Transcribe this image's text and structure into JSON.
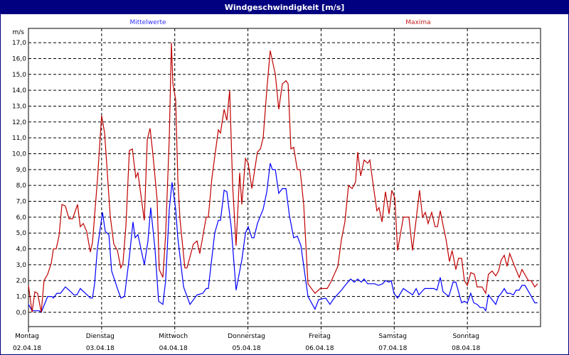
{
  "window": {
    "title": "Windgeschwindigkeit [m/s]"
  },
  "colors": {
    "titlebar": "#000080",
    "mittelwerte": "#0000ff",
    "maxima": "#c00000",
    "legend_mittel": "#3030ff",
    "legend_max": "#c02020"
  },
  "chart_data": {
    "type": "line",
    "title": "Windgeschwindigkeit [m/s]",
    "ylabel": "m/s",
    "xlabel": "",
    "ylim": [
      -0.9,
      17.9
    ],
    "xlim_hours": [
      0,
      168
    ],
    "grid": true,
    "yticks": [
      "0,0",
      "1,0",
      "2,0",
      "3,0",
      "4,0",
      "5,0",
      "6,0",
      "7,0",
      "8,0",
      "9,0",
      "10,0",
      "11,0",
      "12,0",
      "13,0",
      "14,0",
      "15,0",
      "16,0",
      "17,0"
    ],
    "days": [
      {
        "name": "Montag",
        "date": "02.04.18"
      },
      {
        "name": "Dienstag",
        "date": "03.04.18"
      },
      {
        "name": "Mittwoch",
        "date": "04.04.18"
      },
      {
        "name": "Donnerstag",
        "date": "05.04.18"
      },
      {
        "name": "Freitag",
        "date": "06.04.18"
      },
      {
        "name": "Samstag",
        "date": "07.04.18"
      },
      {
        "name": "Sonntag",
        "date": "08.04.18"
      }
    ],
    "legend": [
      "Mittelwerte",
      "Maxima"
    ],
    "series": [
      {
        "name": "Mittelwerte",
        "color": "#0000ff",
        "hours": [
          0,
          1.2,
          3.5,
          4.2,
          6.3,
          7.7,
          8.2,
          9.3,
          10.5,
          12.1,
          13.3,
          14.9,
          15.9,
          17.0,
          18.7,
          20.3,
          21.0,
          21.7,
          22.6,
          24.3,
          25.2,
          26.4,
          27.3,
          29.2,
          30.3,
          31.5,
          33.1,
          34.3,
          35.0,
          35.9,
          38.0,
          39.2,
          40.1,
          41.5,
          42.7,
          44.1,
          45.0,
          46.2,
          47.1,
          48.3,
          49.0,
          50.9,
          53.0,
          55.3,
          57.2,
          58.3,
          59.0,
          61.1,
          62.3,
          63.0,
          64.2,
          65.1,
          66.5,
          68.1,
          70.0,
          71.2,
          72.1,
          73.3,
          74.0,
          75.1,
          77.0,
          78.2,
          79.3,
          80.0,
          81.0,
          82.1,
          83.3,
          84.5,
          85.6,
          87.0,
          88.2,
          89.4,
          91.7,
          94.0,
          95.2,
          97.5,
          98.9,
          100.3,
          102.7,
          104.3,
          105.7,
          106.9,
          108.0,
          109.2,
          110.1,
          111.3,
          113.6,
          114.8,
          116.2,
          117.1,
          118.3,
          119.0,
          119.9,
          121.1,
          123.0,
          126.0,
          127.2,
          128.1,
          130.0,
          133.0,
          134.0,
          135.1,
          136.0,
          137.9,
          139.3,
          140.2,
          142.1,
          143.0,
          144.0,
          145.1,
          146.1,
          147.2,
          148.2,
          149.3,
          150.0,
          150.9,
          153.3,
          154.2,
          155.1,
          156.1,
          157.0,
          157.9,
          159.1,
          160.0,
          161.0,
          161.9,
          162.9,
          165.0,
          166.1,
          167.0
        ],
        "values": [
          0.5,
          0.1,
          0.1,
          0.0,
          1.0,
          1.0,
          0.9,
          1.2,
          1.2,
          1.6,
          1.4,
          1.1,
          1.1,
          1.5,
          1.2,
          0.9,
          0.9,
          1.8,
          4.0,
          6.3,
          5.1,
          4.9,
          2.6,
          1.5,
          0.9,
          1.0,
          3.5,
          5.7,
          4.7,
          4.9,
          3.0,
          4.5,
          6.6,
          4.0,
          0.7,
          0.5,
          2.0,
          6.5,
          8.2,
          6.5,
          4.7,
          1.6,
          0.5,
          1.1,
          1.2,
          1.5,
          1.5,
          5.0,
          5.8,
          5.8,
          7.7,
          7.6,
          5.4,
          1.4,
          3.3,
          5.0,
          5.4,
          4.7,
          4.7,
          5.6,
          6.5,
          7.6,
          9.4,
          9.0,
          9.0,
          7.5,
          7.8,
          7.8,
          6.1,
          4.7,
          4.8,
          4.2,
          1.0,
          0.2,
          0.8,
          0.9,
          0.5,
          0.9,
          1.4,
          1.8,
          2.1,
          1.9,
          2.1,
          1.9,
          2.1,
          1.8,
          1.8,
          1.7,
          1.8,
          2.0,
          1.9,
          2.0,
          1.2,
          0.9,
          1.5,
          1.1,
          1.5,
          1.1,
          1.5,
          1.5,
          1.4,
          2.2,
          1.3,
          1.0,
          1.9,
          1.9,
          0.6,
          0.7,
          0.6,
          1.2,
          0.6,
          0.5,
          0.3,
          0.3,
          0.1,
          1.1,
          0.5,
          1.0,
          1.2,
          1.5,
          1.2,
          1.2,
          1.1,
          1.4,
          1.4,
          1.7,
          1.7,
          1.0,
          0.6,
          0.6
        ]
      },
      {
        "name": "Maxima",
        "color": "#c00000",
        "hours": [
          0,
          1.2,
          2.1,
          3.0,
          4.2,
          5.1,
          6.3,
          7.5,
          8.2,
          9.1,
          10.0,
          11.0,
          12.1,
          13.3,
          14.5,
          16.1,
          17.0,
          18.0,
          19.1,
          20.3,
          21.0,
          22.6,
          23.6,
          24.0,
          25.0,
          26.8,
          28.0,
          29.2,
          30.3,
          31.0,
          32.0,
          33.1,
          34.1,
          35.2,
          35.9,
          36.9,
          38.0,
          39.0,
          39.9,
          40.8,
          42.2,
          42.9,
          44.1,
          45.0,
          46.2,
          46.9,
          47.4,
          48.3,
          49.0,
          49.7,
          51.3,
          52.0,
          54.1,
          55.3,
          56.2,
          58.3,
          59.0,
          60.2,
          62.3,
          63.0,
          64.2,
          65.1,
          66.0,
          67.0,
          68.1,
          69.3,
          70.0,
          71.2,
          72.1,
          73.3,
          75.1,
          76.1,
          77.0,
          78.2,
          79.3,
          81.0,
          82.1,
          83.3,
          84.5,
          85.2,
          86.1,
          87.0,
          88.2,
          89.1,
          90.3,
          91.7,
          94.0,
          95.7,
          98.0,
          99.2,
          101.5,
          102.7,
          103.8,
          105.0,
          106.2,
          107.3,
          108.0,
          109.0,
          110.1,
          111.3,
          112.0,
          113.2,
          114.3,
          115.0,
          116.0,
          117.1,
          118.3,
          119.2,
          120.2,
          121.1,
          123.0,
          124.8,
          126.0,
          128.3,
          129.3,
          130.2,
          131.1,
          132.3,
          133.4,
          134.2,
          135.1,
          136.0,
          137.0,
          138.1,
          139.0,
          140.2,
          141.1,
          142.1,
          143.0,
          144.0,
          145.1,
          146.3,
          147.2,
          148.8,
          150.0,
          150.9,
          152.1,
          153.3,
          154.2,
          155.1,
          156.1,
          157.0,
          157.9,
          159.3,
          161.0,
          161.9,
          164.0,
          164.9,
          166.1,
          167.0
        ],
        "values": [
          1.7,
          0.0,
          1.3,
          1.2,
          0.0,
          2.0,
          2.4,
          3.1,
          4.0,
          4.0,
          4.8,
          6.8,
          6.7,
          5.9,
          5.9,
          6.8,
          5.4,
          5.6,
          5.1,
          3.8,
          4.4,
          8.3,
          11.2,
          12.4,
          11.3,
          6.1,
          4.3,
          3.9,
          2.8,
          3.1,
          5.5,
          10.2,
          10.3,
          8.5,
          8.8,
          7.4,
          5.8,
          10.9,
          11.6,
          10.0,
          7.1,
          2.7,
          2.2,
          4.9,
          11.0,
          17.0,
          14.4,
          13.4,
          8.4,
          5.9,
          2.8,
          2.8,
          4.3,
          4.5,
          3.7,
          6.0,
          6.0,
          8.5,
          11.5,
          11.3,
          12.8,
          12.1,
          14.0,
          8.0,
          4.2,
          8.8,
          6.8,
          9.7,
          9.4,
          7.8,
          10.1,
          10.3,
          11.0,
          14.0,
          16.5,
          15.0,
          12.8,
          14.4,
          14.6,
          14.4,
          10.3,
          10.4,
          9.0,
          9.0,
          6.8,
          1.8,
          1.2,
          1.5,
          1.5,
          1.9,
          2.9,
          4.6,
          5.7,
          8.0,
          7.8,
          8.2,
          10.1,
          8.6,
          9.6,
          9.4,
          9.6,
          7.9,
          6.4,
          6.6,
          5.7,
          7.6,
          6.2,
          7.7,
          7.2,
          3.9,
          6.0,
          6.0,
          3.9,
          7.7,
          6.0,
          6.3,
          5.6,
          6.3,
          5.4,
          5.4,
          6.4,
          5.5,
          4.6,
          3.2,
          3.9,
          2.7,
          3.4,
          3.4,
          2.0,
          1.7,
          2.5,
          2.4,
          1.6,
          1.6,
          1.2,
          2.4,
          2.6,
          2.3,
          2.6,
          3.3,
          3.6,
          2.9,
          3.7,
          3.0,
          2.2,
          2.7,
          2.0,
          2.0,
          1.6,
          1.8
        ]
      }
    ]
  }
}
